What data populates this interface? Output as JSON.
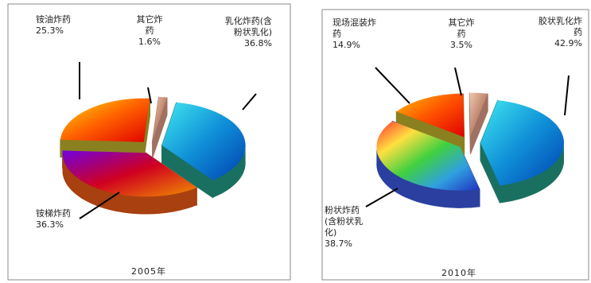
{
  "chart_data": [
    {
      "type": "pie",
      "title": "2005年",
      "categories": [
        "乳化炸药(含粉状乳化)",
        "铵梯炸药",
        "铵油炸药",
        "其它炸药"
      ],
      "values": [
        36.8,
        36.3,
        25.3,
        1.6
      ],
      "value_labels": [
        "36.8%",
        "36.3%",
        "25.3%",
        "1.6%"
      ],
      "colors": [
        [
          "#40e8f0",
          "#1090d8",
          "#0040b0"
        ],
        [
          "#7000e0",
          "#d00020",
          "#f09000"
        ],
        [
          "#ffe000",
          "#ff6000",
          "#e00000"
        ],
        [
          "#f0c8b0",
          "#c08870",
          "#e0b090"
        ]
      ],
      "side_colors": [
        "#1a7060",
        "#a84010",
        "#8a8020",
        "#a07060"
      ]
    },
    {
      "type": "pie",
      "title": "2010年",
      "categories": [
        "胶状乳化炸药",
        "粉状炸药(含粉状乳化)",
        "现场混装炸药",
        "其它炸药"
      ],
      "values": [
        42.9,
        38.7,
        14.9,
        3.5
      ],
      "value_labels": [
        "42.9%",
        "38.7%",
        "14.9%",
        "3.5%"
      ],
      "colors": [
        [
          "#40e8f0",
          "#1090d8",
          "#0040b0"
        ],
        [
          "#ff3030",
          "#ffe040",
          "#40d040",
          "#30a0e0",
          "#2030c0"
        ],
        [
          "#ffc000",
          "#ff5000",
          "#e00000"
        ],
        [
          "#f0c8b0",
          "#c08870",
          "#e0b090"
        ]
      ],
      "side_colors": [
        "#1a7060",
        "#2a3fa0",
        "#8a8020",
        "#a07060"
      ]
    }
  ]
}
